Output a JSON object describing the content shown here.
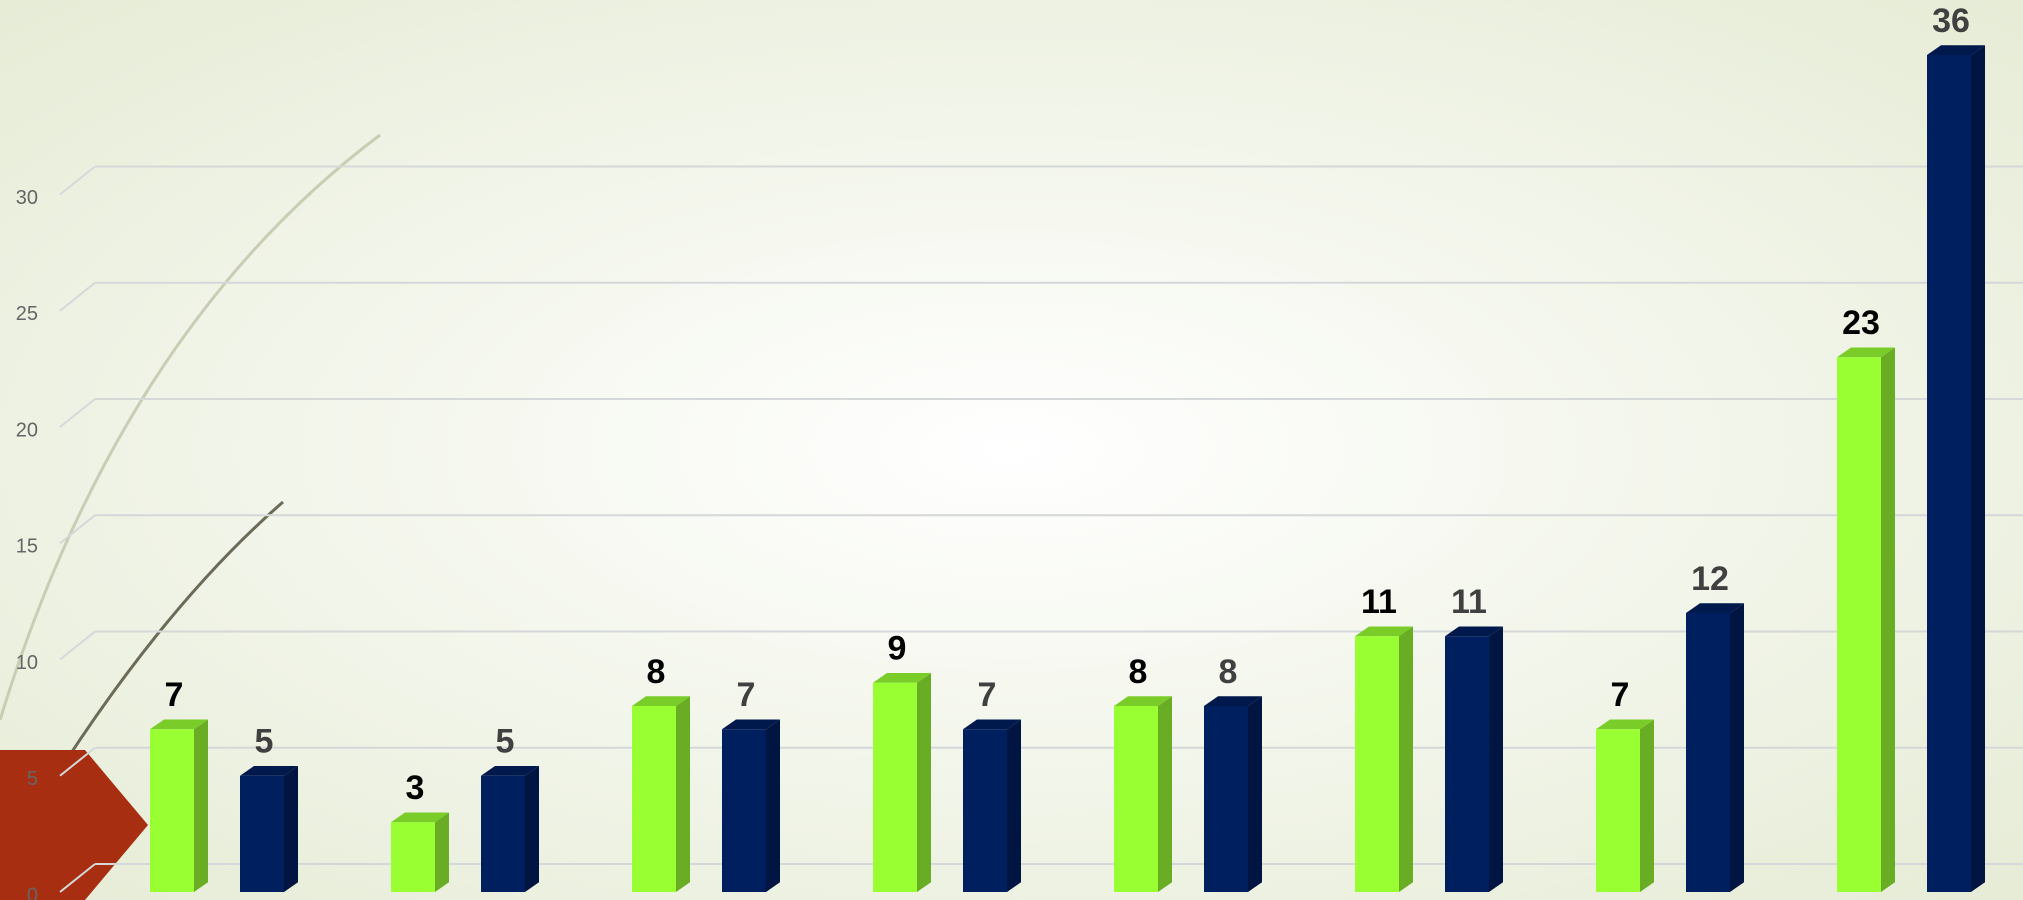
{
  "chart_data": {
    "type": "bar",
    "categories": [
      null,
      null,
      null,
      null,
      null,
      null,
      null,
      null
    ],
    "series": [
      {
        "color": "#99ff33",
        "values": [
          7,
          3,
          8,
          9,
          8,
          11,
          7,
          23
        ]
      },
      {
        "color": "#001f5f",
        "values": [
          5,
          5,
          7,
          7,
          8,
          11,
          12,
          36
        ]
      }
    ],
    "ylim": [
      0,
      36
    ],
    "yticks": [
      0,
      5,
      10,
      15,
      20,
      25,
      30
    ],
    "grid": true
  }
}
